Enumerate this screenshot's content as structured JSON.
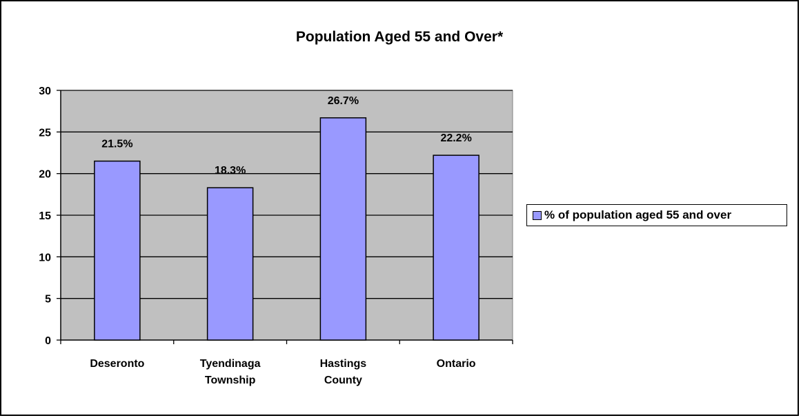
{
  "chart_data": {
    "type": "bar",
    "title": "Population Aged 55 and Over*",
    "categories": [
      "Deseronto",
      "Tyendinaga Township",
      "Hastings County",
      "Ontario"
    ],
    "category_lines": [
      [
        "Deseronto"
      ],
      [
        "Tyendinaga",
        "Township"
      ],
      [
        "Hastings",
        "County"
      ],
      [
        "Ontario"
      ]
    ],
    "series": [
      {
        "name": "% of population aged 55 and over",
        "values": [
          21.5,
          18.3,
          26.7,
          22.2
        ],
        "data_labels": [
          "21.5%",
          "18.3%",
          "26.7%",
          "22.2%"
        ],
        "color": "#9999ff"
      }
    ],
    "ylim": [
      0,
      30
    ],
    "yticks": [
      0,
      5,
      10,
      15,
      20,
      25,
      30
    ],
    "grid": true,
    "plot_background": "#c0c0c0",
    "legend": "right"
  }
}
